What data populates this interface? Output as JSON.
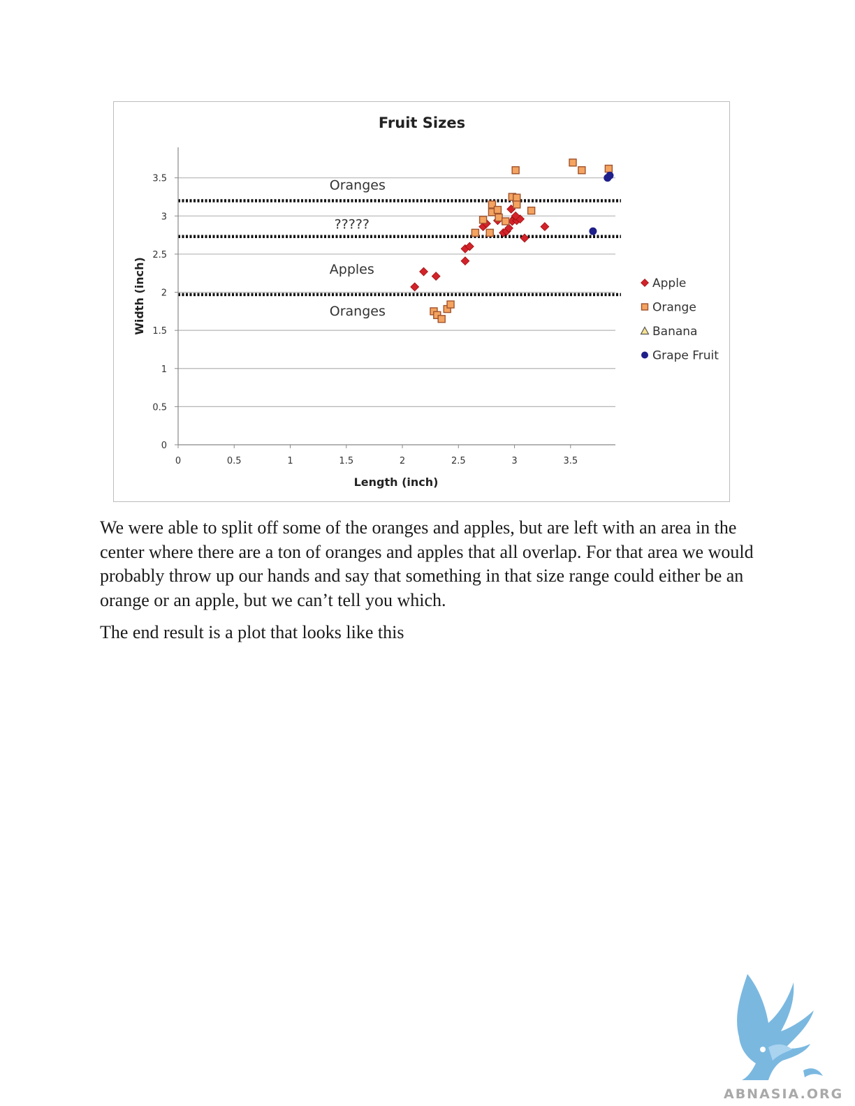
{
  "chart_data": {
    "type": "scatter",
    "title": "Fruit Sizes",
    "xlabel": "Length (inch)",
    "ylabel": "Width (inch)",
    "xlim": [
      0,
      3.9
    ],
    "ylim": [
      0,
      3.9
    ],
    "x_ticks": [
      "0",
      "0.5",
      "1",
      "1.5",
      "2",
      "2.5",
      "3",
      "3.5"
    ],
    "y_ticks": [
      "0",
      "0.5",
      "1",
      "1.5",
      "2",
      "2.5",
      "3",
      "3.5"
    ],
    "grid": "horizontal",
    "legend_position": "right",
    "series": [
      {
        "name": "Apple",
        "marker": "diamond",
        "color": "#d2232a",
        "points": [
          [
            2.11,
            2.07
          ],
          [
            2.19,
            2.27
          ],
          [
            2.3,
            2.21
          ],
          [
            2.56,
            2.41
          ],
          [
            2.56,
            2.57
          ],
          [
            2.6,
            2.6
          ],
          [
            2.72,
            2.86
          ],
          [
            2.75,
            2.9
          ],
          [
            2.85,
            2.94
          ],
          [
            2.9,
            2.78
          ],
          [
            2.93,
            2.8
          ],
          [
            2.95,
            2.84
          ],
          [
            2.97,
            3.09
          ],
          [
            3.0,
            2.97
          ],
          [
            2.98,
            2.93
          ],
          [
            3.02,
            2.94
          ],
          [
            3.05,
            2.96
          ],
          [
            3.01,
            3.0
          ],
          [
            3.09,
            2.71
          ],
          [
            3.27,
            2.86
          ]
        ]
      },
      {
        "name": "Orange",
        "marker": "square",
        "color": "#f4a460",
        "points": [
          [
            2.28,
            1.75
          ],
          [
            2.31,
            1.7
          ],
          [
            2.35,
            1.65
          ],
          [
            2.4,
            1.78
          ],
          [
            2.43,
            1.84
          ],
          [
            2.65,
            2.78
          ],
          [
            2.72,
            2.95
          ],
          [
            2.78,
            2.78
          ],
          [
            2.8,
            3.05
          ],
          [
            2.8,
            3.15
          ],
          [
            2.85,
            3.08
          ],
          [
            2.86,
            2.98
          ],
          [
            2.92,
            2.93
          ],
          [
            2.98,
            3.25
          ],
          [
            3.02,
            3.24
          ],
          [
            3.02,
            3.15
          ],
          [
            3.15,
            3.07
          ],
          [
            3.01,
            3.6
          ],
          [
            3.52,
            3.7
          ],
          [
            3.6,
            3.6
          ],
          [
            3.84,
            3.62
          ]
        ]
      },
      {
        "name": "Banana",
        "marker": "triangle",
        "color": "#f7e38f",
        "points": []
      },
      {
        "name": "Grape Fruit",
        "marker": "circle",
        "color": "#1f1f8a",
        "points": [
          [
            3.83,
            3.5
          ],
          [
            3.85,
            3.53
          ],
          [
            3.7,
            2.8
          ]
        ]
      }
    ],
    "threshold_lines": [
      3.2,
      2.73,
      1.97
    ],
    "region_labels": [
      {
        "text": "Oranges",
        "x": 1.6,
        "y": 3.4
      },
      {
        "text": "?????",
        "x": 1.55,
        "y": 2.89
      },
      {
        "text": "Apples",
        "x": 1.55,
        "y": 2.3
      },
      {
        "text": "Oranges",
        "x": 1.6,
        "y": 1.75
      }
    ]
  },
  "text": {
    "para1": "We were able to split off some of the oranges and apples, but are left with an area in the center where there are a ton of oranges and apples that all overlap. For that area we would probably throw up our hands and say that something in that size range could either be an orange or an apple, but we can’t tell you which.",
    "para2": "The end result is a plot that looks like this"
  },
  "watermark": {
    "text": "ABNASIA.ORG",
    "icon": "griffin-logo-icon",
    "color": "#7ab8e0"
  }
}
